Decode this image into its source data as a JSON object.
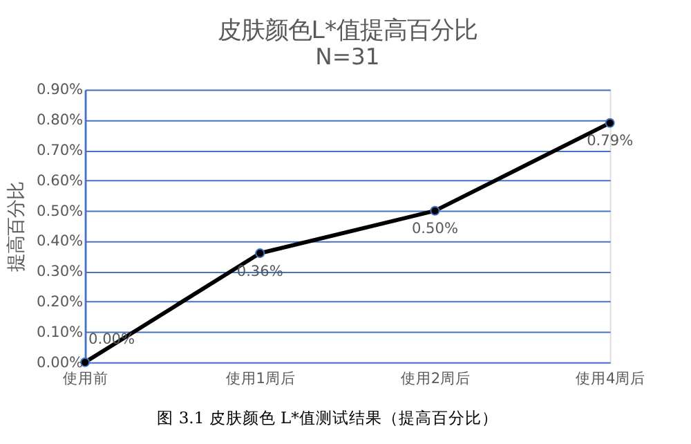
{
  "chart_data": {
    "type": "line",
    "title": "皮肤颜色L*值提高百分比",
    "subtitle": "N=31",
    "ylabel": "提高百分比",
    "categories": [
      "使用前",
      "使用1周后",
      "使用2周后",
      "使用4周后"
    ],
    "series": [
      {
        "color": "#000000",
        "values": [
          0,
          0.36,
          0.5,
          0.79
        ],
        "value_labels": [
          "0.00%",
          "0.36%",
          "0.50%",
          "0.79%"
        ]
      }
    ],
    "ylim": [
      0,
      0.9
    ],
    "yticks": [
      {
        "value": 0,
        "label": "0.00%"
      },
      {
        "value": 0.1,
        "label": "0.10%"
      },
      {
        "value": 0.2,
        "label": "0.20%"
      },
      {
        "value": 0.3,
        "label": "0.30%"
      },
      {
        "value": 0.4,
        "label": "0.40%"
      },
      {
        "value": 0.5,
        "label": "0.50%"
      },
      {
        "value": 0.6,
        "label": "0.60%"
      },
      {
        "value": 0.7,
        "label": "0.70%"
      },
      {
        "value": 0.8,
        "label": "0.80%"
      },
      {
        "value": 0.9,
        "label": "0.90%"
      }
    ],
    "grid": "y",
    "marker": "circle",
    "line_style": "solid",
    "annotations": [
      "图 3.1 皮肤颜色 L*值测试结果（提高百分比）"
    ]
  }
}
